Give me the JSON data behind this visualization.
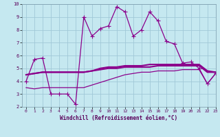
{
  "title": "",
  "xlabel": "Windchill (Refroidissement éolien,°C)",
  "ylabel": "",
  "xlim": [
    -0.5,
    23
  ],
  "ylim": [
    2,
    10
  ],
  "xticks": [
    0,
    1,
    2,
    3,
    4,
    5,
    6,
    7,
    8,
    9,
    10,
    11,
    12,
    13,
    14,
    15,
    16,
    17,
    18,
    19,
    20,
    21,
    22,
    23
  ],
  "yticks": [
    2,
    3,
    4,
    5,
    6,
    7,
    8,
    9,
    10
  ],
  "background_color": "#c5e8f0",
  "grid_color": "#a0c8d8",
  "line_color": "#8b008b",
  "series": [
    {
      "x": [
        0,
        1,
        2,
        3,
        4,
        5,
        6,
        7,
        8,
        9,
        10,
        11,
        12,
        13,
        14,
        15,
        16,
        17,
        18,
        19,
        20,
        21,
        22,
        23
      ],
      "y": [
        4.0,
        5.7,
        5.8,
        3.0,
        3.0,
        3.0,
        2.2,
        9.0,
        7.5,
        8.1,
        8.3,
        9.8,
        9.4,
        7.5,
        8.0,
        9.4,
        8.7,
        7.1,
        6.9,
        5.4,
        5.5,
        5.0,
        3.8,
        4.6
      ],
      "marker": "+",
      "markersize": 4,
      "linewidth": 0.9,
      "linestyle": "-"
    },
    {
      "x": [
        0,
        1,
        2,
        3,
        4,
        5,
        6,
        7,
        8,
        9,
        10,
        11,
        12,
        13,
        14,
        15,
        16,
        17,
        18,
        19,
        20,
        21,
        22,
        23
      ],
      "y": [
        4.5,
        4.6,
        4.7,
        4.7,
        4.7,
        4.7,
        4.7,
        4.7,
        4.8,
        4.9,
        5.0,
        5.0,
        5.1,
        5.1,
        5.1,
        5.1,
        5.2,
        5.2,
        5.2,
        5.2,
        5.2,
        5.2,
        4.7,
        4.7
      ],
      "marker": null,
      "linewidth": 1.5,
      "linestyle": "-"
    },
    {
      "x": [
        0,
        1,
        2,
        3,
        4,
        5,
        6,
        7,
        8,
        9,
        10,
        11,
        12,
        13,
        14,
        15,
        16,
        17,
        18,
        19,
        20,
        21,
        22,
        23
      ],
      "y": [
        4.5,
        4.6,
        4.7,
        4.7,
        4.7,
        4.7,
        4.7,
        4.7,
        4.8,
        5.0,
        5.1,
        5.1,
        5.2,
        5.2,
        5.2,
        5.3,
        5.3,
        5.3,
        5.3,
        5.3,
        5.3,
        5.3,
        4.8,
        4.7
      ],
      "marker": null,
      "linewidth": 1.5,
      "linestyle": "-"
    },
    {
      "x": [
        0,
        1,
        2,
        3,
        4,
        5,
        6,
        7,
        8,
        9,
        10,
        11,
        12,
        13,
        14,
        15,
        16,
        17,
        18,
        19,
        20,
        21,
        22,
        23
      ],
      "y": [
        3.5,
        3.4,
        3.5,
        3.5,
        3.5,
        3.5,
        3.5,
        3.5,
        3.7,
        3.9,
        4.1,
        4.3,
        4.5,
        4.6,
        4.7,
        4.7,
        4.8,
        4.8,
        4.8,
        4.9,
        4.9,
        4.9,
        3.8,
        4.6
      ],
      "marker": null,
      "linewidth": 0.9,
      "linestyle": "-"
    }
  ]
}
